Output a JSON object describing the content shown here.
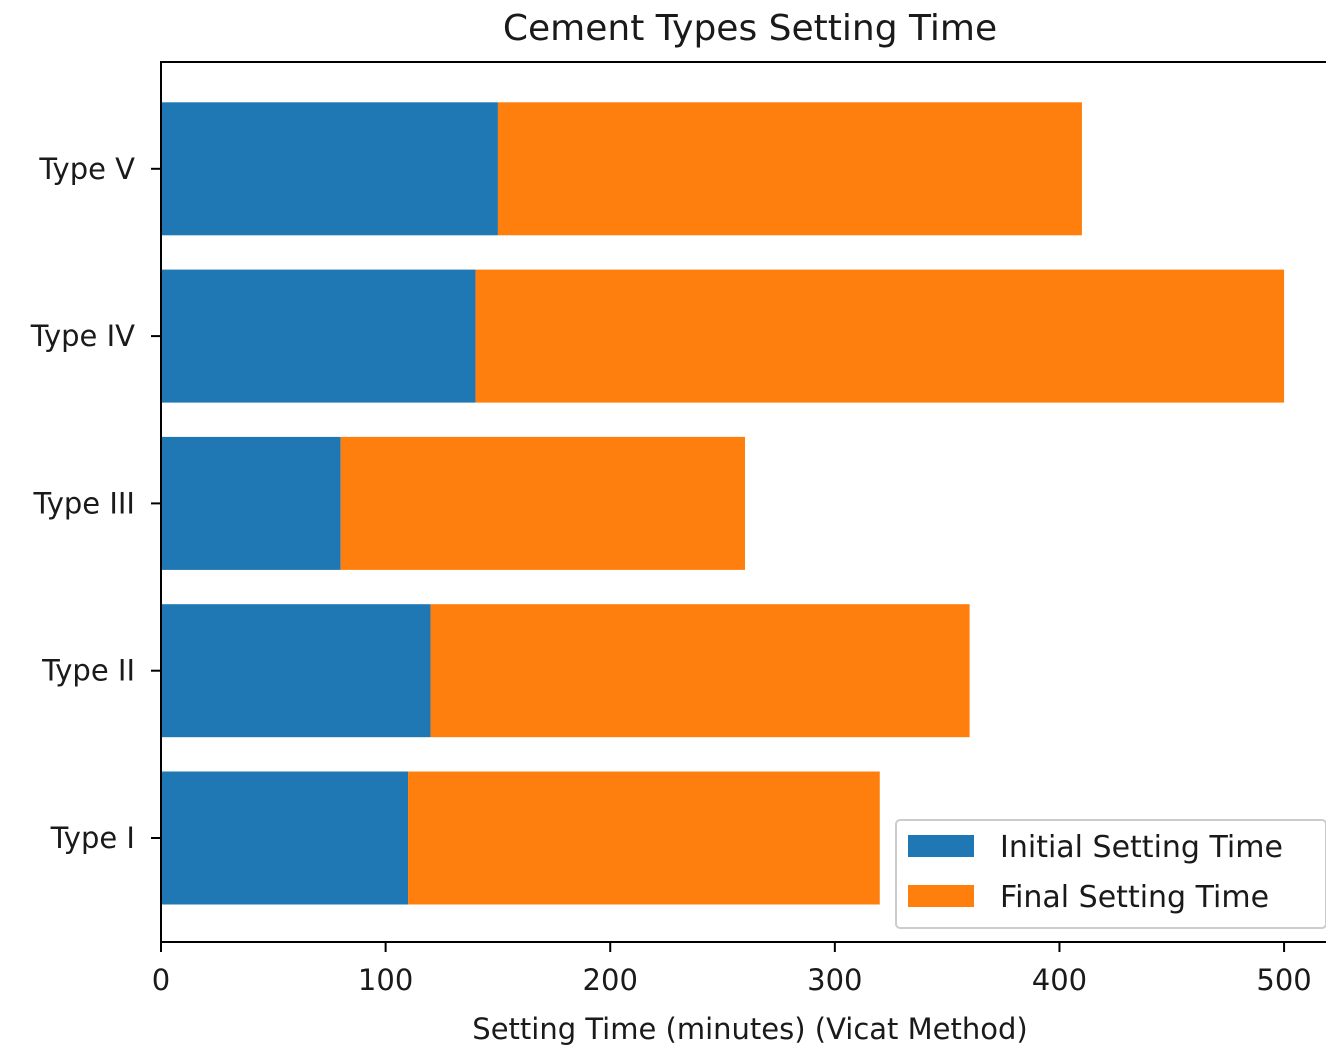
{
  "chart_data": {
    "type": "bar",
    "orientation": "horizontal",
    "stacked": true,
    "title": "Cement Types Setting Time",
    "xlabel": "Setting Time (minutes) (Vicat Method)",
    "ylabel": "",
    "categories": [
      "Type I",
      "Type II",
      "Type III",
      "Type IV",
      "Type V"
    ],
    "series": [
      {
        "name": "Initial Setting Time",
        "color": "#1f77b4",
        "values": [
          110,
          120,
          80,
          140,
          150
        ]
      },
      {
        "name": "Final Setting Time",
        "color": "#ff7f0e",
        "values": [
          210,
          240,
          180,
          360,
          260
        ]
      }
    ],
    "xlim": [
      0,
      520
    ],
    "xticks": [
      0,
      100,
      200,
      300,
      400,
      500
    ],
    "xtick_labels": [
      "0",
      "100",
      "200",
      "300",
      "400",
      "500"
    ],
    "grid": false,
    "legend_position": "lower-right"
  }
}
